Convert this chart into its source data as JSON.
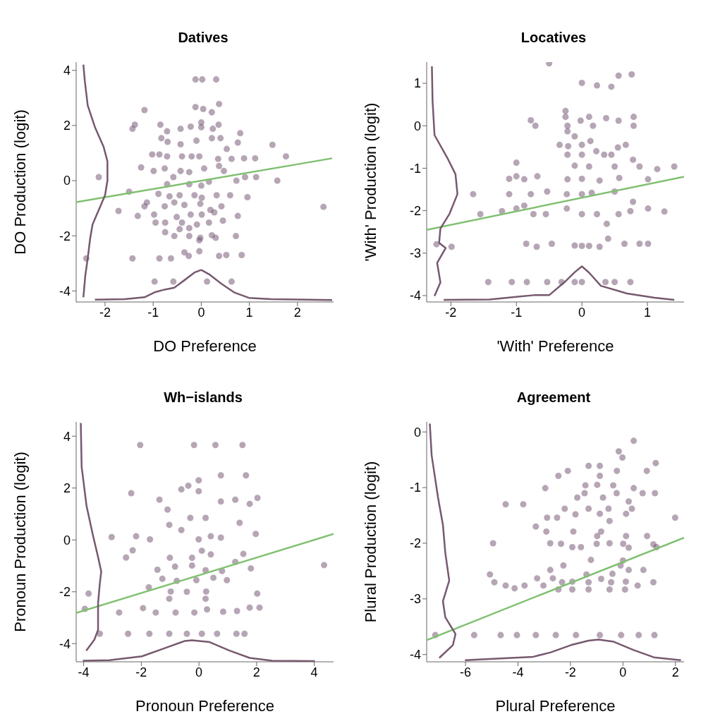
{
  "chart_data": [
    {
      "type": "scatter",
      "title": "Datives",
      "xlabel": "DO Preference",
      "ylabel": "DO Production (logit)",
      "marker": "circle",
      "xlim": [
        -2.6,
        2.75
      ],
      "ylim": [
        -4.4,
        4.3
      ],
      "xticks": [
        -2,
        -1,
        0,
        1,
        2
      ],
      "yticks": [
        -4,
        -2,
        0,
        2,
        4
      ],
      "series": [
        {
          "color": "#6e4e6b",
          "x": [
            -2.13,
            -2.39,
            -1.18,
            -1.38,
            -1.43,
            -1.5,
            -1.72,
            -1.25,
            -1.32,
            -1.43,
            -0.87,
            -0.63,
            -0.97,
            -0.58,
            0.12,
            0.63,
            -0.12,
            0.02,
            0.31,
            0.37,
            -0.12,
            0.04,
            0.22,
            -0.85,
            -0.71,
            -0.43,
            -0.22,
            0,
            0,
            0.36,
            0.24,
            -0.83,
            -0.7,
            -0.43,
            -0.1,
            0.22,
            0.4,
            0.53,
            0.81,
            0.76,
            1.48,
            1.76,
            1.12,
            -1.02,
            -0.87,
            -0.71,
            -0.4,
            -0.2,
            -0.04,
            0.35,
            0.63,
            0.89,
            -0.99,
            -0.76,
            -0.43,
            -0.25,
            0.06,
            0.37,
            0.47,
            0.91,
            1.14,
            1.58,
            0.73,
            -0.58,
            -0.71,
            -0.25,
            0,
            0.16,
            -0.89,
            -0.66,
            -0.45,
            -0.14,
            0.01,
            0.32,
            0.6,
            0.96,
            -1.13,
            -1.18,
            -0.76,
            -0.56,
            -0.35,
            -0.02,
            0.19,
            0.42,
            2.54,
            -0.98,
            -0.51,
            -0.22,
            0.01,
            0.27,
            0.76,
            -0.95,
            -0.75,
            -0.4,
            -0.09,
            0.16,
            0.45,
            -0.25,
            -0.45,
            -0.75,
            -0.56,
            -0.25,
            -0.02,
            0.22,
            0.3,
            0.72,
            -0.35,
            -0.26,
            -0.04,
            0.37,
            0.52,
            0.84,
            -0.04
          ],
          "values": [
            0.13,
            -2.82,
            2.56,
            2.03,
            1.88,
            -0.4,
            -1.1,
            0.48,
            -1.28,
            -2.82,
            -2.82,
            -2.82,
            -3.66,
            -3.66,
            -3.66,
            -3.66,
            3.67,
            3.67,
            3.67,
            2.78,
            2.67,
            2.6,
            2.48,
            2.03,
            1.79,
            1.88,
            1.96,
            2.11,
            1.94,
            2.03,
            1.88,
            1.54,
            1.41,
            1.32,
            1.45,
            1.54,
            1.54,
            1.15,
            1.72,
            1.38,
            1.3,
            0.88,
            0.81,
            0.95,
            0.95,
            0.88,
            0.88,
            0.88,
            0.88,
            0.79,
            0.79,
            0.81,
            0.35,
            0.44,
            0.35,
            0.31,
            0.44,
            0.53,
            0.35,
            0.13,
            0.13,
            0,
            0,
            0.13,
            -0.13,
            -0.13,
            -0.18,
            -0.04,
            -0.48,
            -0.57,
            -0.53,
            -0.53,
            -0.62,
            -0.53,
            -0.53,
            -0.6,
            -0.79,
            -0.93,
            -0.93,
            -0.79,
            -0.88,
            -0.84,
            -1.06,
            -0.93,
            -0.95,
            -1.23,
            -1.32,
            -1.23,
            -1.23,
            -1.15,
            -1.28,
            -1.52,
            -1.52,
            -1.52,
            -1.59,
            -1.52,
            -1.45,
            -1.72,
            -1.76,
            -1.87,
            -2.01,
            -2.01,
            -2.07,
            -1.98,
            -2.07,
            -2.01,
            -2.6,
            -2.73,
            -2.56,
            -2.73,
            -2.7,
            -2.7,
            -2.16
          ]
        },
        {
          "type": "line",
          "color": "#80c070",
          "x": [
            -2.6,
            2.72
          ],
          "values": [
            -0.78,
            0.81
          ],
          "marker": "none"
        },
        {
          "type": "line",
          "color": "#76596f",
          "x": [
            -2.45,
            -2.42,
            -2.36,
            -2.21,
            -2.03,
            -1.95,
            -1.95,
            -2.0,
            -2.13,
            -2.26,
            -2.31,
            -2.36,
            -2.41,
            -2.45
          ],
          "values": [
            4.21,
            3.61,
            2.73,
            1.94,
            1.23,
            0.7,
            0,
            -0.53,
            -1.06,
            -1.59,
            -2.11,
            -2.82,
            -3.44,
            -4.23
          ],
          "marker": "none"
        },
        {
          "type": "line",
          "color": "#76596f",
          "x": [
            -2.21,
            -1.59,
            -1.18,
            -0.97,
            -0.76,
            -0.56,
            -0.35,
            -0.14,
            0,
            0.16,
            0.42,
            0.68,
            0.99,
            1.45,
            2.72
          ],
          "values": [
            -4.32,
            -4.3,
            -4.23,
            -4.05,
            -3.95,
            -3.88,
            -3.61,
            -3.33,
            -3.24,
            -3.39,
            -3.74,
            -4.05,
            -4.25,
            -4.3,
            -4.33
          ],
          "marker": "none"
        }
      ]
    },
    {
      "type": "scatter",
      "title": "Locatives",
      "xlabel": "'With' Preference",
      "ylabel": "'With' Production (logit)",
      "marker": "circle",
      "xlim": [
        -2.37,
        1.56
      ],
      "ylim": [
        -4.15,
        1.5
      ],
      "xticks": [
        -2,
        -1,
        0,
        1
      ],
      "yticks": [
        -4,
        -3,
        -2,
        -1,
        0,
        1
      ],
      "series": [
        {
          "color": "#6e4e6b",
          "x": [
            -0.5,
            0,
            0.23,
            0.45,
            0.56,
            0.76,
            -0.25,
            -0.25,
            0.11,
            0.37,
            0.56,
            0.79,
            0.79,
            -0.02,
            0.17,
            -0.78,
            -0.71,
            -0.22,
            -0.22,
            -0.11,
            -0.34,
            -0.21,
            0,
            0.13,
            0.22,
            0.67,
            0.55,
            -0.22,
            0,
            0.34,
            0.45,
            -1.0,
            -0.11,
            0.11,
            0.5,
            0.78,
            0.88,
            1.15,
            1.41,
            -1.11,
            -1.0,
            -0.88,
            -0.68,
            -0.22,
            0,
            0.27,
            0.57,
            1.01,
            -1.66,
            -1.11,
            -0.78,
            -0.53,
            -0.23,
            0,
            0.15,
            0.5,
            0.78,
            -1.55,
            -1.22,
            -1.0,
            -0.88,
            -0.74,
            -0.55,
            -0.23,
            0,
            0.23,
            0.56,
            0.74,
            1.01,
            1.26,
            0.38,
            -2.22,
            -1.99,
            -0.85,
            -0.69,
            -0.46,
            -0.11,
            0,
            0.11,
            0.27,
            0.4,
            0.65,
            0.88,
            1.01,
            -1.43,
            -1.07,
            -0.84,
            -0.53,
            -0.31,
            -0.11,
            0,
            0.36,
            0.5,
            0.74
          ],
          "values": [
            1.47,
            1.01,
            0.95,
            0.92,
            1.18,
            1.21,
            0.35,
            0.21,
            0.21,
            0.18,
            0.12,
            0.21,
            0,
            0.12,
            0,
            0.13,
            0,
            0,
            -0.13,
            -0.25,
            -0.45,
            -0.48,
            -0.45,
            -0.36,
            -0.6,
            -0.45,
            -0.51,
            -0.68,
            -0.68,
            -0.68,
            -0.68,
            -0.87,
            -0.94,
            -0.96,
            -0.96,
            -0.8,
            -0.96,
            -1.02,
            -0.96,
            -1.25,
            -1.19,
            -1.26,
            -1.19,
            -1.26,
            -1.25,
            -1.29,
            -1.23,
            -1.26,
            -1.61,
            -1.61,
            -1.61,
            -1.55,
            -1.61,
            -1.61,
            -1.58,
            -1.55,
            -1.79,
            -2.08,
            -2.01,
            -1.95,
            -1.88,
            -2.08,
            -2.08,
            -1.95,
            -2.08,
            -2.08,
            -2.08,
            -2.01,
            -1.95,
            -2.02,
            -2.31,
            -2.79,
            -2.85,
            -2.78,
            -2.85,
            -2.78,
            -2.82,
            -2.83,
            -2.83,
            -2.85,
            -2.66,
            -2.78,
            -2.78,
            -2.78,
            -3.68,
            -3.68,
            -3.68,
            -3.68,
            -3.68,
            -3.68,
            -3.68,
            -3.68,
            -3.68,
            -3.68
          ]
        },
        {
          "type": "line",
          "color": "#80c070",
          "x": [
            -2.37,
            1.56
          ],
          "values": [
            -2.45,
            -1.2
          ],
          "marker": "none"
        },
        {
          "type": "line",
          "color": "#76596f",
          "x": [
            -2.29,
            -2.28,
            -2.25,
            -2.06,
            -1.93,
            -1.9,
            -2.02,
            -2.16,
            -2.18,
            -2.08,
            -2.21,
            -2.16,
            -2.25
          ],
          "values": [
            1.4,
            0.59,
            -0.22,
            -0.74,
            -1.14,
            -1.61,
            -2.07,
            -2.42,
            -2.76,
            -2.88,
            -3.23,
            -3.69,
            -4.01
          ],
          "marker": "none"
        },
        {
          "type": "line",
          "color": "#76596f",
          "x": [
            -2.11,
            -1.41,
            -0.95,
            -0.73,
            -0.5,
            -0.27,
            -0.11,
            0,
            0.11,
            0.29,
            0.69,
            1.11,
            1.41
          ],
          "values": [
            -4.1,
            -4.09,
            -4.02,
            -3.99,
            -3.99,
            -3.69,
            -3.45,
            -3.31,
            -3.46,
            -3.77,
            -3.95,
            -4.05,
            -4.1
          ],
          "marker": "none"
        }
      ]
    },
    {
      "type": "scatter",
      "title": "Wh−islands",
      "xlabel": "Pronoun Preference",
      "ylabel": "Pronoun Production (logit)",
      "marker": "circle",
      "xlim": [
        -4.26,
        4.67
      ],
      "ylim": [
        -4.7,
        4.55
      ],
      "xticks": [
        -4,
        -2,
        0,
        2,
        4
      ],
      "yticks": [
        -4,
        -2,
        0,
        2,
        4
      ],
      "series": [
        {
          "color": "#6e4e6b",
          "x": [
            -2.04,
            -0.17,
            0.57,
            1.51,
            0.76,
            1.63,
            -0.37,
            -0.61,
            -0.01,
            -0.01,
            -2.35,
            -1.37,
            -1.09,
            0.76,
            1.26,
            2.03,
            1.76,
            -1.03,
            -0.3,
            0.23,
            1.41,
            -3.03,
            -2.18,
            -1.7,
            -0.61,
            -0.01,
            0.41,
            0.76,
            1.97,
            -2.3,
            -2.53,
            -1.01,
            -0.24,
            0.1,
            0.41,
            1.26,
            1.54,
            4.34,
            -1.44,
            -0.83,
            -0.24,
            0.23,
            0.8,
            1.8,
            -1.27,
            -0.77,
            -0.09,
            0.5,
            0.97,
            -1.74,
            -0.98,
            -0.42,
            0.25,
            -3.83,
            2.02,
            -1.03,
            0.23,
            -3.96,
            -2.77,
            -1.94,
            -1.5,
            -0.81,
            -0.16,
            0.28,
            0.84,
            1.32,
            1.76,
            2.1,
            -3.44,
            -2.46,
            -1.72,
            -1.03,
            -0.42,
            0.1,
            0.63,
            1.3,
            1.58
          ],
          "values": [
            3.66,
            3.66,
            3.66,
            3.66,
            2.49,
            2.49,
            2.09,
            1.95,
            2.3,
            1.88,
            1.8,
            1.55,
            1.17,
            1.48,
            1.55,
            1.62,
            1.39,
            0.58,
            0.85,
            0.85,
            0.66,
            0.11,
            0.14,
            0.02,
            0.38,
            0.02,
            0.14,
            0.09,
            0.23,
            -0.4,
            -0.68,
            -0.69,
            -0.69,
            -0.42,
            -0.56,
            -0.85,
            -0.54,
            -0.97,
            -1.15,
            -1.03,
            -0.99,
            -1.17,
            -1.2,
            -1.1,
            -1.5,
            -1.58,
            -1.55,
            -1.46,
            -1.55,
            -1.83,
            -1.99,
            -2.0,
            -1.99,
            -2.07,
            -2.07,
            -2.27,
            -2.27,
            -2.66,
            -2.8,
            -2.63,
            -2.8,
            -2.8,
            -2.8,
            -2.68,
            -2.77,
            -2.74,
            -2.61,
            -2.61,
            -3.62,
            -3.62,
            -3.62,
            -3.62,
            -3.62,
            -3.62,
            -3.62,
            -3.62,
            -3.62
          ]
        },
        {
          "type": "line",
          "color": "#80c070",
          "x": [
            -4.26,
            4.67
          ],
          "values": [
            -2.82,
            0.23
          ],
          "marker": "none"
        },
        {
          "type": "line",
          "color": "#76596f",
          "x": [
            -4.1,
            -4.07,
            -3.9,
            -3.68,
            -3.5,
            -3.39,
            -3.44,
            -3.5,
            -3.5,
            -3.63,
            -3.91
          ],
          "values": [
            4.51,
            2.82,
            1.31,
            0.19,
            -0.66,
            -1.22,
            -1.69,
            -2.44,
            -3.47,
            -3.85,
            -4.27
          ],
          "marker": "none"
        },
        {
          "type": "line",
          "color": "#76596f",
          "x": [
            -4.03,
            -3.11,
            -1.98,
            -1.2,
            -0.5,
            -0.24,
            0.37,
            1.06,
            1.76,
            2.54,
            4.02
          ],
          "values": [
            -4.66,
            -4.64,
            -4.49,
            -4.18,
            -3.9,
            -3.87,
            -3.94,
            -4.27,
            -4.55,
            -4.66,
            -4.67
          ],
          "marker": "none"
        }
      ]
    },
    {
      "type": "scatter",
      "title": "Agreement",
      "xlabel": "Plural Preference",
      "ylabel": "Plural Production (logit)",
      "marker": "circle",
      "xlim": [
        -7.48,
        2.33
      ],
      "ylim": [
        -4.13,
        0.18
      ],
      "xticks": [
        -6,
        -4,
        -2,
        0,
        2
      ],
      "yticks": [
        -4,
        -3,
        -2,
        -1,
        0
      ],
      "series": [
        {
          "color": "#6e4e6b",
          "x": [
            0.41,
            -0.16,
            -0.02,
            1.25,
            -1.31,
            -0.88,
            -2.1,
            -0.23,
            0.91,
            -2.46,
            -0.88,
            -2.96,
            -1.43,
            -0.98,
            -0.37,
            0.41,
            -1.46,
            -0.24,
            0.75,
            1.22,
            -1.74,
            -0.76,
            -4.47,
            -3.8,
            0.22,
            -2.22,
            -1.31,
            -0.55,
            0.34,
            -2.89,
            -2.51,
            -1.81,
            -0.88,
            0.12,
            1.99,
            -0.51,
            -3.32,
            -2.92,
            -1.89,
            -0.83,
            -0.98,
            0.12,
            0.92,
            -4.95,
            -2.77,
            -2.36,
            -1.93,
            -1.6,
            -1.0,
            -0.51,
            0.01,
            1.16,
            1.28,
            0.22,
            -1.22,
            0,
            -2.27,
            -0.09,
            -2.77,
            0.22,
            0.78,
            -5.07,
            -1.39,
            -0.4,
            -4.9,
            -3.27,
            -2.67,
            -2.32,
            -1.93,
            -1.31,
            -0.83,
            -0.45,
            0.11,
            1.16,
            -4.47,
            -4.13,
            -3.75,
            -3.03,
            -2.46,
            -1.93,
            -1.31,
            -0.51,
            0.08,
            0.56,
            -7.15,
            -5.67,
            -4.66,
            -4.04,
            -3.32,
            -2.56,
            -1.79,
            -0.88,
            -0.07,
            0.6,
            1.2
          ],
          "values": [
            -0.16,
            -0.35,
            -0.46,
            -0.56,
            -0.61,
            -0.61,
            -0.7,
            -0.7,
            -0.7,
            -0.79,
            -0.79,
            -1.01,
            -0.96,
            -0.95,
            -0.96,
            -1.01,
            -1.1,
            -1.1,
            -1.1,
            -1.1,
            -1.18,
            -1.18,
            -1.3,
            -1.3,
            -1.25,
            -1.38,
            -1.38,
            -1.38,
            -1.38,
            -1.54,
            -1.54,
            -1.48,
            -1.47,
            -1.47,
            -1.54,
            -1.6,
            -1.7,
            -1.79,
            -1.79,
            -1.79,
            -1.87,
            -1.87,
            -1.87,
            -2.0,
            -2.0,
            -2.01,
            -2.07,
            -2.07,
            -2.01,
            -2.0,
            -2.01,
            -2.02,
            -2.07,
            -2.08,
            -2.3,
            -2.31,
            -2.4,
            -2.4,
            -2.48,
            -2.48,
            -2.48,
            -2.56,
            -2.56,
            -2.55,
            -2.7,
            -2.63,
            -2.63,
            -2.7,
            -2.69,
            -2.7,
            -2.64,
            -2.7,
            -2.69,
            -2.7,
            -2.76,
            -2.81,
            -2.76,
            -2.76,
            -2.83,
            -2.83,
            -2.83,
            -2.83,
            -2.83,
            -2.76,
            -3.65,
            -3.65,
            -3.65,
            -3.65,
            -3.65,
            -3.65,
            -3.65,
            -3.65,
            -3.65,
            -3.65,
            -3.65
          ]
        },
        {
          "type": "line",
          "color": "#80c070",
          "x": [
            -7.48,
            2.33
          ],
          "values": [
            -3.74,
            -1.9
          ],
          "marker": "none"
        },
        {
          "type": "line",
          "color": "#76596f",
          "x": [
            -7.36,
            -7.29,
            -7.05,
            -6.86,
            -6.77,
            -6.62,
            -6.86,
            -6.77,
            -6.38,
            -6.48,
            -7.0
          ],
          "values": [
            0.15,
            -0.42,
            -1.17,
            -1.67,
            -2.17,
            -2.67,
            -3.04,
            -3.33,
            -3.63,
            -3.83,
            -4.06
          ],
          "marker": "none"
        },
        {
          "type": "line",
          "color": "#76596f",
          "x": [
            -6.02,
            -4.66,
            -3.42,
            -2.75,
            -1.98,
            -1.31,
            -0.93,
            -0.35,
            0.41,
            1.18,
            2.21
          ],
          "values": [
            -4.1,
            -4.07,
            -4.04,
            -3.96,
            -3.83,
            -3.75,
            -3.73,
            -3.77,
            -3.92,
            -4.05,
            -4.1
          ],
          "marker": "none"
        }
      ]
    }
  ]
}
